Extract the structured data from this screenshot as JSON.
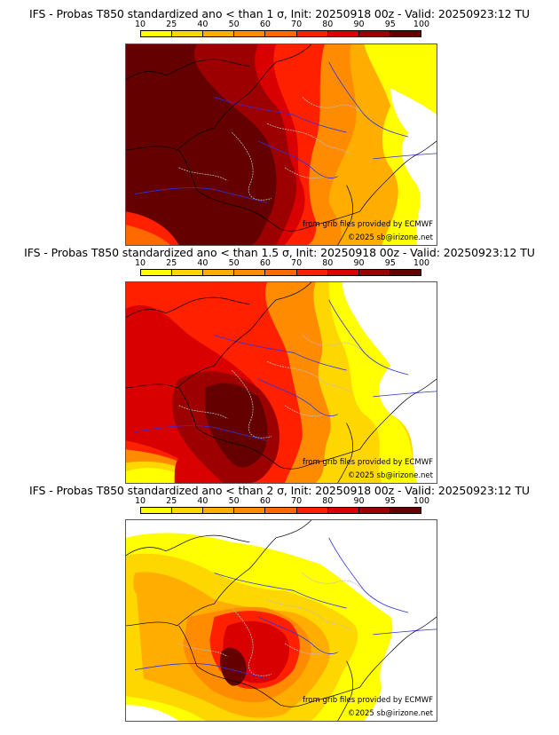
{
  "colorbar": {
    "ticks": [
      "10",
      "25",
      "40",
      "50",
      "60",
      "70",
      "80",
      "90",
      "95",
      "100"
    ],
    "colors": [
      "#ffff00",
      "#ffd700",
      "#ffae00",
      "#ff8c00",
      "#ff6a00",
      "#ff2000",
      "#d80000",
      "#9c0000",
      "#640000"
    ]
  },
  "panels": [
    {
      "title": "IFS - Probas T850  standardized ano < than 1 σ, Init: 20250918 00z - Valid: 20250923:12 TU",
      "threshold_sigma": 1,
      "source_credit": "from grib files provided by ECMWF",
      "copyright": "©2025 sb@irizone.net"
    },
    {
      "title": "IFS - Probas T850  standardized ano < than 1.5 σ, Init: 20250918 00z - Valid: 20250923:12 TU",
      "threshold_sigma": 1.5,
      "source_credit": "from grib files provided by ECMWF",
      "copyright": "©2025 sb@irizone.net"
    },
    {
      "title": "IFS - Probas T850  standardized ano < than 2 σ, Init: 20250918 00z - Valid: 20250923:12 TU",
      "threshold_sigma": 2,
      "source_credit": "from grib files provided by ECMWF",
      "copyright": "©2025 sb@irizone.net"
    }
  ]
}
